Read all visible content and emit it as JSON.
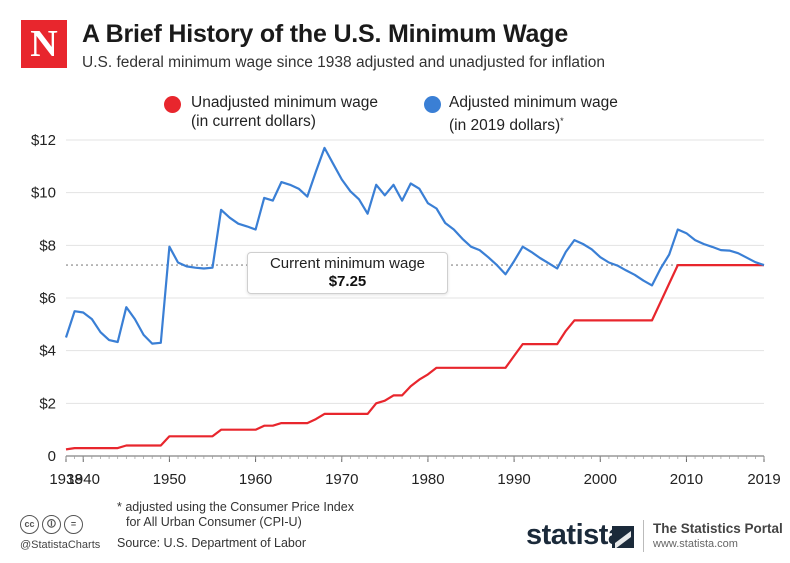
{
  "header": {
    "logo_letter": "N",
    "title": "A Brief History of the U.S. Minimum Wage",
    "subtitle": "U.S. federal minimum wage since 1938 adjusted and unadjusted for inflation"
  },
  "legend": {
    "unadjusted_line1": "Unadjusted minimum wage",
    "unadjusted_line2": "(in current dollars)",
    "adjusted_line1": "Adjusted minimum wage",
    "adjusted_line2": "(in 2019 dollars)",
    "adjusted_marker": "*"
  },
  "callout": {
    "label": "Current minimum wage",
    "value": "$7.25"
  },
  "footer": {
    "footnote_line1": "* adjusted using the Consumer Price Index",
    "footnote_line2": "for All Urban Consumer (CPI-U)",
    "source": "Source: U.S. Department of Labor",
    "handle": "@StatistaCharts",
    "brand": "statista",
    "portal": "The Statistics Portal",
    "portal_url": "www.statista.com"
  },
  "colors": {
    "unadjusted": "#e8262d",
    "adjusted": "#3a7fd5",
    "logo_bg": "#e8262d"
  },
  "chart_data": {
    "type": "line",
    "title": "A Brief History of the U.S. Minimum Wage",
    "xlabel": "",
    "ylabel": "",
    "xlim": [
      1938,
      2019
    ],
    "ylim": [
      0,
      12
    ],
    "y_ticks": [
      0,
      2,
      4,
      6,
      8,
      10,
      12
    ],
    "y_tick_labels": [
      "0",
      "$2",
      "$4",
      "$6",
      "$8",
      "$10",
      "$12"
    ],
    "x_ticks": [
      1938,
      1940,
      1950,
      1960,
      1970,
      1980,
      1990,
      2000,
      2010,
      2019
    ],
    "x_tick_labels": [
      "1938",
      "1940",
      "1950",
      "1960",
      "1970",
      "1980",
      "1990",
      "2000",
      "2010",
      "2019"
    ],
    "reference_line": 7.25,
    "series": [
      {
        "name": "Unadjusted minimum wage (in current dollars)",
        "color": "#e8262d",
        "x": [
          1938,
          1939,
          1940,
          1941,
          1942,
          1943,
          1944,
          1945,
          1946,
          1947,
          1948,
          1949,
          1950,
          1951,
          1952,
          1953,
          1954,
          1955,
          1956,
          1957,
          1958,
          1959,
          1960,
          1961,
          1962,
          1963,
          1964,
          1965,
          1966,
          1967,
          1968,
          1969,
          1970,
          1971,
          1972,
          1973,
          1974,
          1975,
          1976,
          1977,
          1978,
          1979,
          1980,
          1981,
          1982,
          1983,
          1984,
          1985,
          1986,
          1987,
          1988,
          1989,
          1990,
          1991,
          1992,
          1993,
          1994,
          1995,
          1996,
          1997,
          1998,
          1999,
          2000,
          2001,
          2002,
          2003,
          2004,
          2005,
          2006,
          2007,
          2008,
          2009,
          2010,
          2011,
          2012,
          2013,
          2014,
          2015,
          2016,
          2017,
          2018,
          2019
        ],
        "values": [
          0.25,
          0.3,
          0.3,
          0.3,
          0.3,
          0.3,
          0.3,
          0.4,
          0.4,
          0.4,
          0.4,
          0.4,
          0.75,
          0.75,
          0.75,
          0.75,
          0.75,
          0.75,
          1.0,
          1.0,
          1.0,
          1.0,
          1.0,
          1.15,
          1.15,
          1.25,
          1.25,
          1.25,
          1.25,
          1.4,
          1.6,
          1.6,
          1.6,
          1.6,
          1.6,
          1.6,
          2.0,
          2.1,
          2.3,
          2.3,
          2.65,
          2.9,
          3.1,
          3.35,
          3.35,
          3.35,
          3.35,
          3.35,
          3.35,
          3.35,
          3.35,
          3.35,
          3.8,
          4.25,
          4.25,
          4.25,
          4.25,
          4.25,
          4.75,
          5.15,
          5.15,
          5.15,
          5.15,
          5.15,
          5.15,
          5.15,
          5.15,
          5.15,
          5.15,
          5.85,
          6.55,
          7.25,
          7.25,
          7.25,
          7.25,
          7.25,
          7.25,
          7.25,
          7.25,
          7.25,
          7.25,
          7.25
        ]
      },
      {
        "name": "Adjusted minimum wage (in 2019 dollars)",
        "color": "#3a7fd5",
        "x": [
          1938,
          1939,
          1940,
          1941,
          1942,
          1943,
          1944,
          1945,
          1946,
          1947,
          1948,
          1949,
          1950,
          1951,
          1952,
          1953,
          1954,
          1955,
          1956,
          1957,
          1958,
          1959,
          1960,
          1961,
          1962,
          1963,
          1964,
          1965,
          1966,
          1967,
          1968,
          1969,
          1970,
          1971,
          1972,
          1973,
          1974,
          1975,
          1976,
          1977,
          1978,
          1979,
          1980,
          1981,
          1982,
          1983,
          1984,
          1985,
          1986,
          1987,
          1988,
          1989,
          1990,
          1991,
          1992,
          1993,
          1994,
          1995,
          1996,
          1997,
          1998,
          1999,
          2000,
          2001,
          2002,
          2003,
          2004,
          2005,
          2006,
          2007,
          2008,
          2009,
          2010,
          2011,
          2012,
          2013,
          2014,
          2015,
          2016,
          2017,
          2018,
          2019
        ],
        "values": [
          4.5,
          5.5,
          5.45,
          5.2,
          4.7,
          4.4,
          4.33,
          5.65,
          5.2,
          4.6,
          4.27,
          4.3,
          7.95,
          7.35,
          7.2,
          7.15,
          7.12,
          7.15,
          9.35,
          9.05,
          8.82,
          8.72,
          8.6,
          9.8,
          9.7,
          10.4,
          10.3,
          10.15,
          9.85,
          10.8,
          11.7,
          11.1,
          10.5,
          10.05,
          9.75,
          9.2,
          10.3,
          9.9,
          10.3,
          9.7,
          10.35,
          10.15,
          9.6,
          9.4,
          8.85,
          8.6,
          8.25,
          7.95,
          7.82,
          7.55,
          7.25,
          6.9,
          7.4,
          7.95,
          7.75,
          7.52,
          7.32,
          7.12,
          7.75,
          8.2,
          8.05,
          7.85,
          7.55,
          7.35,
          7.23,
          7.05,
          6.88,
          6.66,
          6.48,
          7.12,
          7.65,
          8.6,
          8.46,
          8.2,
          8.05,
          7.94,
          7.82,
          7.8,
          7.7,
          7.53,
          7.36,
          7.25
        ]
      }
    ]
  }
}
